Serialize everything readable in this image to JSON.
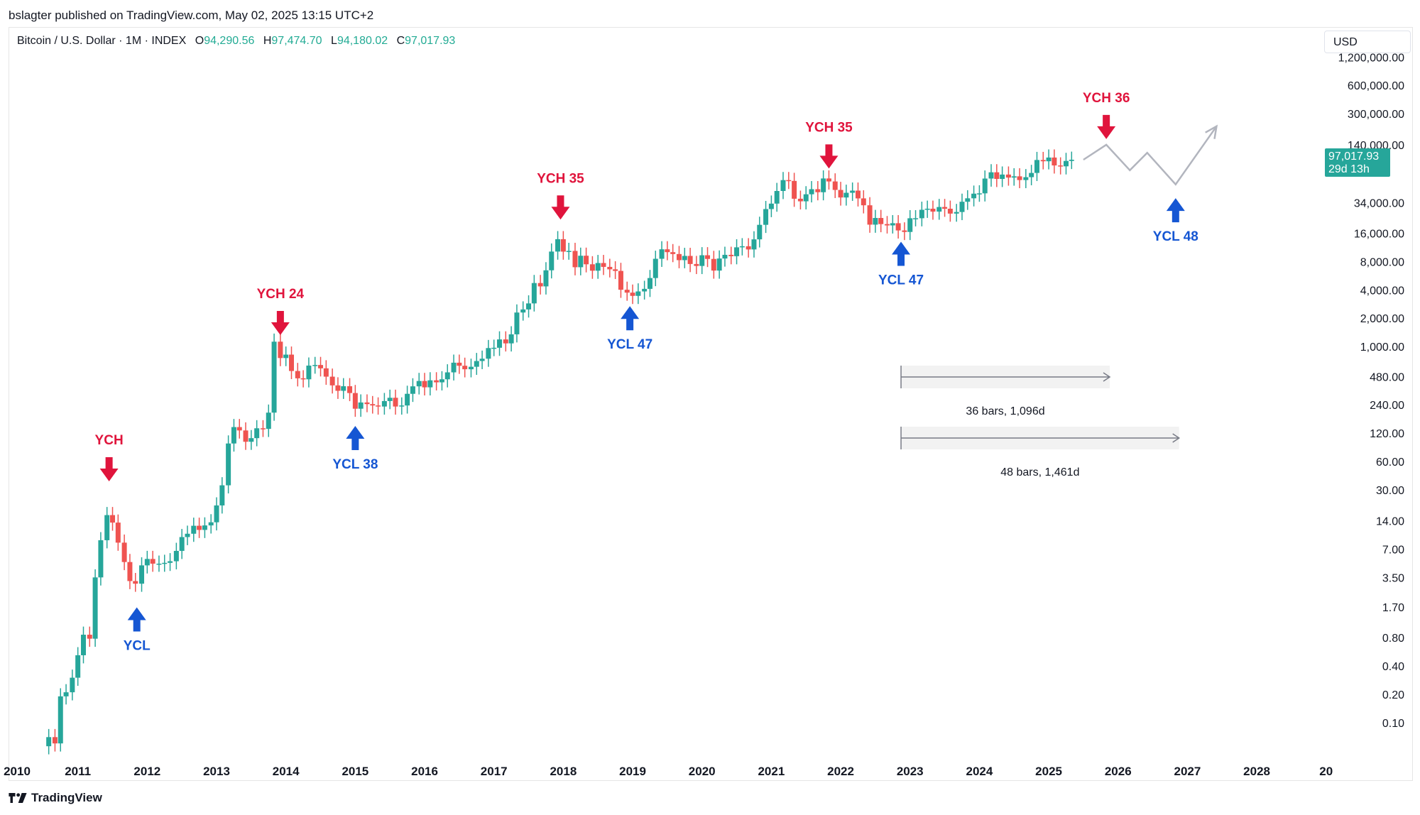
{
  "header": {
    "published": "bslagter published on TradingView.com, May 02, 2025 13:15 UTC+2",
    "symbol": "Bitcoin / U.S. Dollar · 1M · INDEX",
    "open_label": "O",
    "open": "94,290.56",
    "high_label": "H",
    "high": "97,474.70",
    "low_label": "L",
    "low": "94,180.02",
    "close_label": "C",
    "close": "97,017.93",
    "currency": "USD"
  },
  "footer": {
    "brand": "TradingView",
    "logo_icon": "tradingview-logo-icon"
  },
  "colors": {
    "up": "#26a69a",
    "down": "#ef5350",
    "top_marker": "#e0143c",
    "bottom_marker": "#1556d3",
    "projection": "#b2b5be",
    "price_tag": "#26a69a"
  },
  "chart_data": {
    "type": "candlestick",
    "interval": "1M",
    "y_scale": "log",
    "y_ticks": [
      "0.10",
      "0.20",
      "0.40",
      "0.80",
      "1.70",
      "3.50",
      "7.00",
      "14.00",
      "30.00",
      "60.00",
      "120.00",
      "240.00",
      "480.00",
      "1,000.00",
      "2,000.00",
      "4,000.00",
      "8,000.00",
      "16,000.00",
      "34,000.00",
      "140,000.00",
      "300,000.00",
      "600,000.00",
      "1,200,000.00"
    ],
    "x_ticks": [
      "2010",
      "2011",
      "2012",
      "2013",
      "2014",
      "2015",
      "2016",
      "2017",
      "2018",
      "2019",
      "2020",
      "2021",
      "2022",
      "2023",
      "2024",
      "2025",
      "2026",
      "2027",
      "2028",
      "20"
    ],
    "x_range": [
      2010.0,
      2028.9
    ],
    "y_range": [
      0.048,
      1250000
    ],
    "last_price": {
      "value": "97,017.93",
      "countdown": "29d 13h"
    },
    "annotations": [
      {
        "label": "YCH",
        "kind": "top",
        "x": 2011.45,
        "price": 32
      },
      {
        "label": "YCL",
        "kind": "bottom",
        "x": 2011.85,
        "price": 2
      },
      {
        "label": "YCH 24",
        "kind": "top",
        "x": 2013.92,
        "price": 1150
      },
      {
        "label": "YCL 38",
        "kind": "bottom",
        "x": 2015.0,
        "price": 170
      },
      {
        "label": "YCH 35",
        "kind": "top",
        "x": 2017.96,
        "price": 19500
      },
      {
        "label": "YCL 47",
        "kind": "bottom",
        "x": 2018.96,
        "price": 3200
      },
      {
        "label": "YCH 35",
        "kind": "top",
        "x": 2021.83,
        "price": 68000
      },
      {
        "label": "YCL 47",
        "kind": "bottom",
        "x": 2022.87,
        "price": 15500
      },
      {
        "label": "YCH 36",
        "kind": "top",
        "x": 2025.83,
        "price": 140000
      },
      {
        "label": "YCL 48",
        "kind": "bottom",
        "x": 2026.83,
        "price": 45000
      }
    ],
    "projection": [
      [
        2025.5,
        97000
      ],
      [
        2025.83,
        140000
      ],
      [
        2026.17,
        75000
      ],
      [
        2026.42,
        115000
      ],
      [
        2026.83,
        53000
      ],
      [
        2027.42,
        220000
      ]
    ],
    "measures": [
      {
        "label": "36 bars, 1,096d",
        "from": 2022.87,
        "to": 2025.88
      },
      {
        "label": "48 bars, 1,461d",
        "from": 2022.87,
        "to": 2026.88
      }
    ],
    "monthly_close": [
      [
        2010.58,
        0.07
      ],
      [
        2010.67,
        0.06
      ],
      [
        2010.75,
        0.19
      ],
      [
        2010.83,
        0.21
      ],
      [
        2010.92,
        0.3
      ],
      [
        2011.0,
        0.52
      ],
      [
        2011.08,
        0.86
      ],
      [
        2011.17,
        0.78
      ],
      [
        2011.25,
        3.5
      ],
      [
        2011.33,
        8.7
      ],
      [
        2011.42,
        16.1
      ],
      [
        2011.5,
        13.4
      ],
      [
        2011.58,
        8.2
      ],
      [
        2011.67,
        5.1
      ],
      [
        2011.75,
        3.2
      ],
      [
        2011.83,
        3.0
      ],
      [
        2011.92,
        4.7
      ],
      [
        2012.0,
        5.5
      ],
      [
        2012.08,
        4.9
      ],
      [
        2012.17,
        4.9
      ],
      [
        2012.25,
        5.0
      ],
      [
        2012.33,
        5.2
      ],
      [
        2012.42,
        6.7
      ],
      [
        2012.5,
        9.4
      ],
      [
        2012.58,
        10.2
      ],
      [
        2012.67,
        12.4
      ],
      [
        2012.75,
        11.2
      ],
      [
        2012.83,
        12.5
      ],
      [
        2012.92,
        13.5
      ],
      [
        2013.0,
        20.4
      ],
      [
        2013.08,
        33.4
      ],
      [
        2013.17,
        93
      ],
      [
        2013.25,
        139
      ],
      [
        2013.33,
        128
      ],
      [
        2013.42,
        97
      ],
      [
        2013.5,
        106
      ],
      [
        2013.58,
        135
      ],
      [
        2013.67,
        133
      ],
      [
        2013.75,
        198
      ],
      [
        2013.83,
        1126
      ],
      [
        2013.92,
        754
      ],
      [
        2014.0,
        820
      ],
      [
        2014.08,
        549
      ],
      [
        2014.17,
        459
      ],
      [
        2014.25,
        448
      ],
      [
        2014.33,
        627
      ],
      [
        2014.42,
        636
      ],
      [
        2014.5,
        586
      ],
      [
        2014.58,
        478
      ],
      [
        2014.67,
        386
      ],
      [
        2014.75,
        338
      ],
      [
        2014.83,
        378
      ],
      [
        2014.92,
        320
      ],
      [
        2015.0,
        218
      ],
      [
        2015.08,
        254
      ],
      [
        2015.17,
        244
      ],
      [
        2015.25,
        236
      ],
      [
        2015.33,
        230
      ],
      [
        2015.42,
        263
      ],
      [
        2015.5,
        285
      ],
      [
        2015.58,
        230
      ],
      [
        2015.67,
        236
      ],
      [
        2015.75,
        314
      ],
      [
        2015.83,
        377
      ],
      [
        2015.92,
        430
      ],
      [
        2016.0,
        368
      ],
      [
        2016.08,
        437
      ],
      [
        2016.17,
        416
      ],
      [
        2016.25,
        448
      ],
      [
        2016.33,
        531
      ],
      [
        2016.42,
        673
      ],
      [
        2016.5,
        624
      ],
      [
        2016.58,
        573
      ],
      [
        2016.67,
        609
      ],
      [
        2016.75,
        701
      ],
      [
        2016.83,
        742
      ],
      [
        2016.92,
        963
      ],
      [
        2017.0,
        970
      ],
      [
        2017.08,
        1190
      ],
      [
        2017.17,
        1080
      ],
      [
        2017.25,
        1348
      ],
      [
        2017.33,
        2300
      ],
      [
        2017.42,
        2480
      ],
      [
        2017.5,
        2875
      ],
      [
        2017.58,
        4735
      ],
      [
        2017.67,
        4360
      ],
      [
        2017.75,
        6468
      ],
      [
        2017.83,
        10233
      ],
      [
        2017.92,
        13860
      ],
      [
        2018.0,
        10221
      ],
      [
        2018.08,
        10397
      ],
      [
        2018.17,
        6973
      ],
      [
        2018.25,
        9240
      ],
      [
        2018.33,
        7494
      ],
      [
        2018.42,
        6404
      ],
      [
        2018.5,
        7730
      ],
      [
        2018.58,
        7033
      ],
      [
        2018.67,
        6625
      ],
      [
        2018.75,
        6371
      ],
      [
        2018.83,
        4017
      ],
      [
        2018.92,
        3742
      ],
      [
        2019.0,
        3457
      ],
      [
        2019.08,
        3854
      ],
      [
        2019.17,
        4105
      ],
      [
        2019.25,
        5350
      ],
      [
        2019.33,
        8574
      ],
      [
        2019.42,
        10817
      ],
      [
        2019.5,
        10085
      ],
      [
        2019.58,
        9630
      ],
      [
        2019.67,
        8294
      ],
      [
        2019.75,
        9199
      ],
      [
        2019.83,
        7546
      ],
      [
        2019.92,
        7194
      ],
      [
        2020.0,
        9350
      ],
      [
        2020.08,
        8544
      ],
      [
        2020.17,
        6424
      ],
      [
        2020.25,
        8630
      ],
      [
        2020.33,
        9448
      ],
      [
        2020.42,
        9138
      ],
      [
        2020.5,
        11351
      ],
      [
        2020.58,
        11655
      ],
      [
        2020.67,
        10777
      ],
      [
        2020.75,
        13804
      ],
      [
        2020.83,
        19700
      ],
      [
        2020.92,
        28990
      ],
      [
        2021.0,
        33114
      ],
      [
        2021.08,
        45137
      ],
      [
        2021.17,
        58918
      ],
      [
        2021.25,
        57750
      ],
      [
        2021.33,
        37332
      ],
      [
        2021.42,
        35041
      ],
      [
        2021.5,
        41626
      ],
      [
        2021.58,
        47166
      ],
      [
        2021.67,
        43790
      ],
      [
        2021.75,
        61318
      ],
      [
        2021.83,
        57005
      ],
      [
        2021.92,
        46306
      ],
      [
        2022.0,
        38483
      ],
      [
        2022.08,
        43193
      ],
      [
        2022.17,
        45539
      ],
      [
        2022.25,
        37644
      ],
      [
        2022.33,
        31793
      ],
      [
        2022.42,
        19785
      ],
      [
        2022.5,
        23303
      ],
      [
        2022.58,
        20050
      ],
      [
        2022.67,
        19423
      ],
      [
        2022.75,
        20495
      ],
      [
        2022.83,
        17168
      ],
      [
        2022.92,
        16548
      ],
      [
        2023.0,
        23139
      ],
      [
        2023.08,
        23147
      ],
      [
        2023.17,
        28478
      ],
      [
        2023.25,
        29233
      ],
      [
        2023.33,
        27219
      ],
      [
        2023.42,
        30477
      ],
      [
        2023.5,
        29230
      ],
      [
        2023.58,
        25940
      ],
      [
        2023.67,
        26962
      ],
      [
        2023.75,
        34667
      ],
      [
        2023.83,
        37718
      ],
      [
        2023.92,
        42265
      ],
      [
        2024.0,
        42582
      ],
      [
        2024.08,
        61198
      ],
      [
        2024.17,
        71333
      ],
      [
        2024.25,
        60637
      ],
      [
        2024.33,
        67491
      ],
      [
        2024.42,
        62678
      ],
      [
        2024.5,
        64619
      ],
      [
        2024.58,
        58974
      ],
      [
        2024.67,
        63301
      ],
      [
        2024.75,
        70215
      ],
      [
        2024.83,
        96405
      ],
      [
        2024.92,
        93429
      ],
      [
        2025.0,
        102405
      ],
      [
        2025.08,
        84350
      ],
      [
        2025.17,
        82548
      ],
      [
        2025.25,
        94207
      ],
      [
        2025.33,
        97017.93
      ]
    ]
  }
}
